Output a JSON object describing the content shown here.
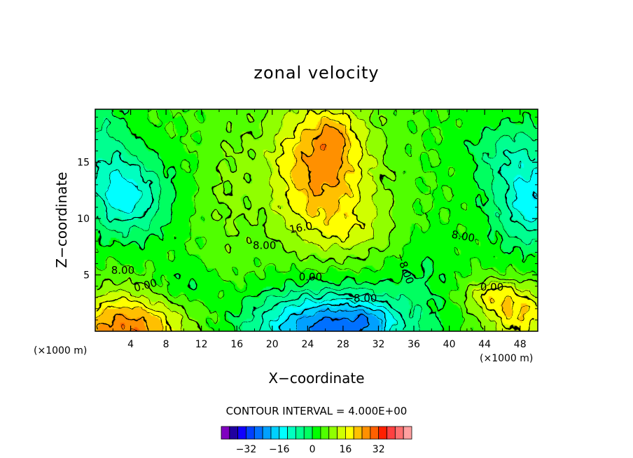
{
  "chart_data": {
    "type": "heatmap",
    "title": "zonal velocity",
    "xlabel": "X−coordinate",
    "ylabel": "Z−coordinate",
    "x_unit": "(×1000 m)",
    "x_ticks": [
      4,
      8,
      12,
      16,
      20,
      24,
      28,
      32,
      36,
      40,
      44,
      48
    ],
    "y_ticks": [
      5,
      10,
      15
    ],
    "xlim": [
      0,
      50
    ],
    "ylim": [
      0,
      19.7
    ],
    "contour_interval_text": "CONTOUR INTERVAL = 4.000E+00",
    "contour_interval": 4,
    "contour_labels": [
      "16.0",
      "8.00",
      "8.00",
      "0.00",
      "0.00",
      "−8.00",
      "−8.00",
      "8.00",
      "0.00"
    ],
    "colorbar": {
      "levels": [
        -40,
        -36,
        -32,
        -28,
        -24,
        -20,
        -16,
        -12,
        -8,
        -4,
        0,
        4,
        8,
        12,
        16,
        20,
        24,
        28,
        32,
        36
      ],
      "tick_labels": [
        "−32",
        "−16",
        "0",
        "16",
        "32"
      ],
      "tick_values": [
        -32,
        -16,
        0,
        16,
        32
      ],
      "colors": [
        "#8000c0",
        "#2000a0",
        "#1000ff",
        "#0040ff",
        "#0070ff",
        "#00a0ff",
        "#00d0ff",
        "#00ffff",
        "#00ffc0",
        "#00ff90",
        "#00ff60",
        "#00ff00",
        "#50ff00",
        "#90ff00",
        "#d0ff00",
        "#ffff00",
        "#ffc000",
        "#ff9000",
        "#ff6000",
        "#ff2000",
        "#ff4040",
        "#ff7070",
        "#ffa0a0"
      ]
    },
    "features": [
      {
        "x": 26,
        "z": 14,
        "value": 24
      },
      {
        "x": 27,
        "z": 17.5,
        "value": 30
      },
      {
        "x": 4,
        "z": 12,
        "value": -14
      },
      {
        "x": 49,
        "z": 11.5,
        "value": -14
      },
      {
        "x": 27,
        "z": 0.8,
        "value": -28
      },
      {
        "x": 3,
        "z": 0.7,
        "value": 26
      },
      {
        "x": 48.5,
        "z": 1.8,
        "value": 20
      },
      {
        "x": 45,
        "z": 3,
        "value": 14
      }
    ]
  }
}
